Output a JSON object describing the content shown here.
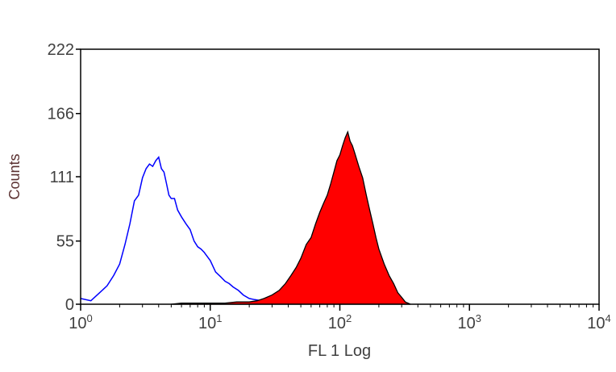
{
  "chart_data": {
    "type": "area",
    "title": "",
    "xlabel": "FL 1 Log",
    "ylabel": "Counts",
    "xscale": "log",
    "xlim": [
      1,
      10000
    ],
    "ylim": [
      0,
      222
    ],
    "yticks": [
      {
        "value": 0,
        "label": "0"
      },
      {
        "value": 55,
        "label": "55"
      },
      {
        "value": 111,
        "label": "111"
      },
      {
        "value": 166,
        "label": "166"
      },
      {
        "value": 222,
        "label": "222"
      }
    ],
    "xticks": [
      {
        "value": 1,
        "base": "10",
        "exp": "0"
      },
      {
        "value": 10,
        "base": "10",
        "exp": "1"
      },
      {
        "value": 100,
        "base": "10",
        "exp": "2"
      },
      {
        "value": 1000,
        "base": "10",
        "exp": "3"
      },
      {
        "value": 10000,
        "base": "10",
        "exp": "4"
      }
    ],
    "grid": false,
    "legend": "none",
    "series": [
      {
        "style": "line",
        "color": "#0000ff",
        "x": [
          1.0,
          1.2,
          1.4,
          1.6,
          1.8,
          2.0,
          2.2,
          2.4,
          2.6,
          2.8,
          3.0,
          3.2,
          3.4,
          3.6,
          3.8,
          4.0,
          4.2,
          4.4,
          4.6,
          4.8,
          5.0,
          5.3,
          5.6,
          6.0,
          6.5,
          7.0,
          7.5,
          8.0,
          8.5,
          9.0,
          10.0,
          11.0,
          12.0,
          13.0,
          14.0,
          15.0,
          16.5,
          18.0,
          20.0,
          22.0,
          25.0,
          28.0,
          32.0,
          36.0,
          40.0
        ],
        "y": [
          5,
          3,
          10,
          16,
          25,
          35,
          52,
          70,
          90,
          95,
          110,
          118,
          122,
          120,
          125,
          128,
          118,
          115,
          105,
          95,
          92,
          92,
          82,
          76,
          70,
          65,
          55,
          50,
          48,
          45,
          38,
          28,
          24,
          20,
          18,
          15,
          12,
          8,
          5,
          4,
          3,
          2,
          2,
          1,
          0
        ]
      },
      {
        "style": "filled",
        "color": "#ff0000",
        "outline": "#000000",
        "x": [
          5.0,
          6.0,
          8.0,
          10.0,
          13.0,
          16.0,
          20.0,
          23.0,
          26.0,
          30.0,
          34.0,
          38.0,
          42.0,
          46.0,
          50.0,
          55.0,
          60.0,
          65.0,
          70.0,
          75.0,
          80.0,
          85.0,
          90.0,
          95.0,
          100.0,
          105.0,
          110.0,
          115.0,
          120.0,
          125.0,
          130.0,
          140.0,
          150.0,
          160.0,
          170.0,
          180.0,
          190.0,
          200.0,
          220.0,
          240.0,
          260.0,
          280.0,
          300.0,
          320.0,
          350.0
        ],
        "y": [
          0,
          1,
          1,
          1,
          1,
          2,
          2,
          3,
          5,
          8,
          12,
          18,
          25,
          32,
          40,
          52,
          58,
          70,
          80,
          88,
          95,
          105,
          115,
          125,
          130,
          138,
          145,
          150,
          142,
          138,
          132,
          120,
          110,
          95,
          82,
          70,
          58,
          48,
          35,
          25,
          18,
          10,
          6,
          2,
          0
        ]
      }
    ]
  }
}
